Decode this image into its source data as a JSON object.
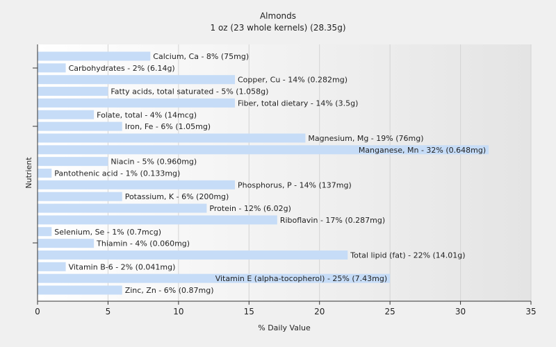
{
  "chart_data": {
    "type": "bar",
    "orientation": "horizontal",
    "title": "Almonds",
    "subtitle": "1 oz (23 whole kernels) (28.35g)",
    "xlabel": "% Daily Value",
    "ylabel": "Nutrient",
    "xlim": [
      0,
      35
    ],
    "xticks": [
      0,
      5,
      10,
      15,
      20,
      25,
      30,
      35
    ],
    "grid": true,
    "bar_color": "#c6dcf7",
    "categories": [
      "Calcium, Ca",
      "Carbohydrates",
      "Copper, Cu",
      "Fatty acids, total saturated",
      "Fiber, total dietary",
      "Folate, total",
      "Iron, Fe",
      "Magnesium, Mg",
      "Manganese, Mn",
      "Niacin",
      "Pantothenic acid",
      "Phosphorus, P",
      "Potassium, K",
      "Protein",
      "Riboflavin",
      "Selenium, Se",
      "Thiamin",
      "Total lipid (fat)",
      "Vitamin B-6",
      "Vitamin E (alpha-tocopherol)",
      "Zinc, Zn"
    ],
    "values": [
      8,
      2,
      14,
      5,
      14,
      4,
      6,
      19,
      32,
      5,
      1,
      14,
      6,
      12,
      17,
      1,
      4,
      22,
      2,
      25,
      6
    ],
    "labels": [
      "Calcium, Ca - 8% (75mg)",
      "Carbohydrates - 2% (6.14g)",
      "Copper, Cu - 14% (0.282mg)",
      "Fatty acids, total saturated - 5% (1.058g)",
      "Fiber, total dietary - 14% (3.5g)",
      "Folate, total - 4% (14mcg)",
      "Iron, Fe - 6% (1.05mg)",
      "Magnesium, Mg - 19% (76mg)",
      "Manganese, Mn - 32% (0.648mg)",
      "Niacin - 5% (0.960mg)",
      "Pantothenic acid - 1% (0.133mg)",
      "Phosphorus, P - 14% (137mg)",
      "Potassium, K - 6% (200mg)",
      "Protein - 12% (6.02g)",
      "Riboflavin - 17% (0.287mg)",
      "Selenium, Se - 1% (0.7mcg)",
      "Thiamin - 4% (0.060mg)",
      "Total lipid (fat) - 22% (14.01g)",
      "Vitamin B-6 - 2% (0.041mg)",
      "Vitamin E (alpha-tocopherol) - 25% (7.43mg)",
      "Zinc, Zn - 6% (0.87mg)"
    ]
  }
}
